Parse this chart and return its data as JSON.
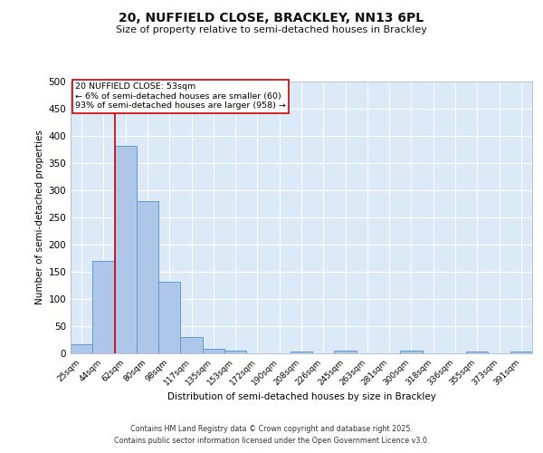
{
  "title_line1": "20, NUFFIELD CLOSE, BRACKLEY, NN13 6PL",
  "title_line2": "Size of property relative to semi-detached houses in Brackley",
  "xlabel": "Distribution of semi-detached houses by size in Brackley",
  "ylabel": "Number of semi-detached properties",
  "categories": [
    "25sqm",
    "44sqm",
    "62sqm",
    "80sqm",
    "98sqm",
    "117sqm",
    "135sqm",
    "153sqm",
    "172sqm",
    "190sqm",
    "208sqm",
    "226sqm",
    "245sqm",
    "263sqm",
    "281sqm",
    "300sqm",
    "318sqm",
    "336sqm",
    "355sqm",
    "373sqm",
    "391sqm"
  ],
  "values": [
    17,
    170,
    382,
    280,
    132,
    30,
    8,
    5,
    0,
    0,
    4,
    0,
    5,
    0,
    0,
    5,
    0,
    0,
    3,
    0,
    4
  ],
  "bar_color": "#aec6e8",
  "bar_edge_color": "#5b9bd5",
  "background_color": "#dce9f7",
  "grid_color": "#ffffff",
  "vline_x": 1.5,
  "vline_color": "#cc0000",
  "annotation_title": "20 NUFFIELD CLOSE: 53sqm",
  "annotation_line1": "← 6% of semi-detached houses are smaller (60)",
  "annotation_line2": "93% of semi-detached houses are larger (958) →",
  "annotation_box_color": "#ffffff",
  "annotation_box_edge": "#cc0000",
  "footnote1": "Contains HM Land Registry data © Crown copyright and database right 2025.",
  "footnote2": "Contains public sector information licensed under the Open Government Licence v3.0.",
  "ylim": [
    0,
    500
  ],
  "yticks": [
    0,
    50,
    100,
    150,
    200,
    250,
    300,
    350,
    400,
    450,
    500
  ]
}
